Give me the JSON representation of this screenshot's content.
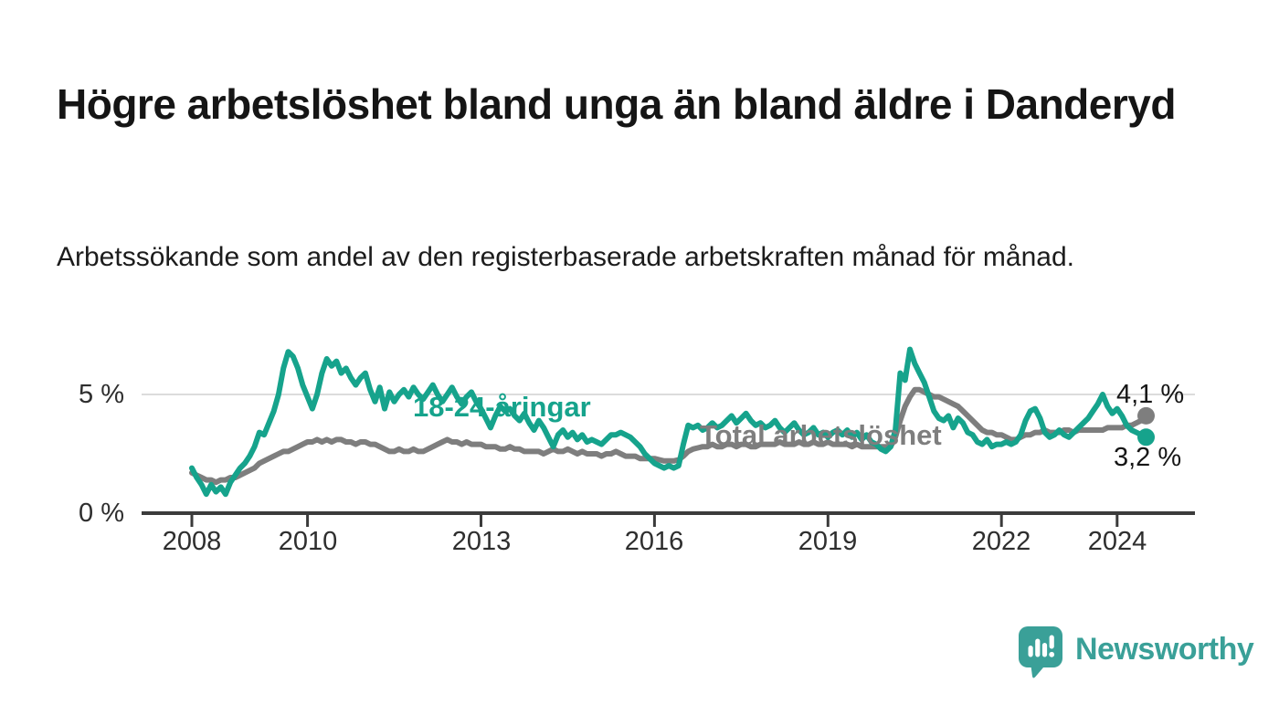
{
  "title": "Högre arbetslöshet bland unga än bland äldre i Danderyd",
  "subtitle": "Arbetssökande som andel av den registerbaserade arbetskraften månad för månad.",
  "axis": {
    "y_labels": [
      "5 %",
      "0 %"
    ],
    "x_labels": [
      "2008",
      "2010",
      "2013",
      "2016",
      "2019",
      "2022",
      "2024"
    ]
  },
  "logo": {
    "text": "Newsworthy",
    "color": "#3aa098",
    "icon": "newsworthy-speech-bubble-bar-chart-icon"
  },
  "chart_data": {
    "type": "line",
    "title": "Högre arbetslöshet bland unga än bland äldre i Danderyd",
    "subtitle": "Arbetssökande som andel av den registerbaserade arbetskraften månad för månad.",
    "unit": "%",
    "frequency": "monthly",
    "x_range": {
      "start": "2008-01",
      "end": "2024-07"
    },
    "x_ticks": [
      {
        "label": "2008",
        "year": 2008
      },
      {
        "label": "2010",
        "year": 2010
      },
      {
        "label": "2013",
        "year": 2013
      },
      {
        "label": "2016",
        "year": 2016
      },
      {
        "label": "2019",
        "year": 2019
      },
      {
        "label": "2022",
        "year": 2022
      },
      {
        "label": "2024",
        "year": 2024
      }
    ],
    "y_axis": {
      "ticks": [
        {
          "label": "0 %",
          "value": 0
        },
        {
          "label": "5 %",
          "value": 5
        }
      ],
      "range": [
        0,
        7.5
      ],
      "gridlines": [
        5
      ]
    },
    "legend_position": "inline-labels",
    "series": [
      {
        "name": "Total arbetslöshet",
        "color": "#7e7e7e",
        "end_label": "4,1 %",
        "last_value": 4.1,
        "values": [
          1.7,
          1.6,
          1.5,
          1.4,
          1.4,
          1.3,
          1.4,
          1.4,
          1.5,
          1.5,
          1.6,
          1.7,
          1.8,
          1.9,
          2.1,
          2.2,
          2.3,
          2.4,
          2.5,
          2.6,
          2.6,
          2.7,
          2.8,
          2.9,
          3.0,
          3.0,
          3.1,
          3.0,
          3.1,
          3.0,
          3.1,
          3.1,
          3.0,
          3.0,
          2.9,
          3.0,
          3.0,
          2.9,
          2.9,
          2.8,
          2.7,
          2.6,
          2.6,
          2.7,
          2.6,
          2.6,
          2.7,
          2.6,
          2.6,
          2.7,
          2.8,
          2.9,
          3.0,
          3.1,
          3.0,
          3.0,
          2.9,
          3.0,
          2.9,
          2.9,
          2.9,
          2.8,
          2.8,
          2.8,
          2.7,
          2.7,
          2.8,
          2.7,
          2.7,
          2.6,
          2.6,
          2.6,
          2.6,
          2.5,
          2.6,
          2.7,
          2.6,
          2.6,
          2.7,
          2.6,
          2.5,
          2.6,
          2.5,
          2.5,
          2.5,
          2.4,
          2.5,
          2.5,
          2.6,
          2.5,
          2.4,
          2.4,
          2.4,
          2.3,
          2.3,
          2.3,
          2.3,
          2.25,
          2.2,
          2.2,
          2.2,
          2.25,
          2.4,
          2.6,
          2.7,
          2.75,
          2.8,
          2.8,
          2.9,
          2.8,
          2.8,
          2.9,
          2.9,
          2.8,
          2.9,
          2.9,
          2.8,
          2.8,
          2.9,
          2.9,
          2.9,
          2.9,
          3.0,
          2.9,
          2.9,
          2.9,
          3.0,
          2.9,
          2.9,
          3.0,
          2.9,
          2.9,
          3.0,
          2.9,
          2.9,
          2.9,
          2.9,
          2.8,
          2.9,
          2.8,
          2.8,
          2.8,
          2.8,
          2.8,
          2.8,
          2.8,
          3.2,
          3.9,
          4.5,
          4.9,
          5.2,
          5.2,
          5.1,
          5.0,
          4.9,
          4.9,
          4.8,
          4.7,
          4.6,
          4.5,
          4.3,
          4.1,
          3.9,
          3.7,
          3.5,
          3.4,
          3.4,
          3.3,
          3.3,
          3.2,
          3.1,
          3.1,
          3.2,
          3.3,
          3.3,
          3.4,
          3.4,
          3.5,
          3.4,
          3.4,
          3.4,
          3.5,
          3.5,
          3.4,
          3.5,
          3.5,
          3.5,
          3.5,
          3.5,
          3.5,
          3.6,
          3.6,
          3.6,
          3.6,
          3.7,
          3.7,
          3.8,
          3.9,
          4.1
        ]
      },
      {
        "name": "18-24-åringar",
        "color": "#16a38c",
        "end_label": "3,2 %",
        "last_value": 3.2,
        "values": [
          1.9,
          1.5,
          1.2,
          0.8,
          1.2,
          0.9,
          1.1,
          0.8,
          1.3,
          1.6,
          1.9,
          2.1,
          2.4,
          2.8,
          3.4,
          3.3,
          3.8,
          4.3,
          5.0,
          6.1,
          6.8,
          6.6,
          6.1,
          5.4,
          4.9,
          4.4,
          5.0,
          5.9,
          6.5,
          6.2,
          6.4,
          5.9,
          6.1,
          5.7,
          5.4,
          5.7,
          5.9,
          5.2,
          4.7,
          5.3,
          4.4,
          5.1,
          4.7,
          5.0,
          5.2,
          4.9,
          5.3,
          5.0,
          4.8,
          5.1,
          5.4,
          5.0,
          4.7,
          5.0,
          5.3,
          4.9,
          4.6,
          4.9,
          5.1,
          4.7,
          4.4,
          4.0,
          3.6,
          4.1,
          4.5,
          4.3,
          4.4,
          4.1,
          3.9,
          4.2,
          3.8,
          3.5,
          3.9,
          3.6,
          3.2,
          2.8,
          3.3,
          3.5,
          3.2,
          3.4,
          3.1,
          3.3,
          3.0,
          3.1,
          3.0,
          2.9,
          3.1,
          3.3,
          3.3,
          3.4,
          3.3,
          3.2,
          3.0,
          2.8,
          2.5,
          2.3,
          2.1,
          2.0,
          1.9,
          2.0,
          1.9,
          2.0,
          2.9,
          3.7,
          3.6,
          3.7,
          3.5,
          3.6,
          3.8,
          3.6,
          3.7,
          3.9,
          4.1,
          3.8,
          4.0,
          4.2,
          3.9,
          3.7,
          3.8,
          3.6,
          3.7,
          3.9,
          3.6,
          3.4,
          3.6,
          3.8,
          3.5,
          3.3,
          3.4,
          3.6,
          3.3,
          3.4,
          3.2,
          3.4,
          3.5,
          3.3,
          3.5,
          3.2,
          3.4,
          3.1,
          3.3,
          3.0,
          2.9,
          2.7,
          2.6,
          2.8,
          3.5,
          5.9,
          5.6,
          6.9,
          6.3,
          5.9,
          5.5,
          4.9,
          4.3,
          4.0,
          3.9,
          4.1,
          3.6,
          4.0,
          3.8,
          3.4,
          3.3,
          3.0,
          2.9,
          3.1,
          2.8,
          2.9,
          2.9,
          3.0,
          2.9,
          3.0,
          3.3,
          3.9,
          4.3,
          4.4,
          4.0,
          3.4,
          3.2,
          3.3,
          3.5,
          3.3,
          3.2,
          3.4,
          3.6,
          3.8,
          4.0,
          4.3,
          4.6,
          5.0,
          4.5,
          4.2,
          4.4,
          4.1,
          3.7,
          3.5,
          3.4,
          3.3,
          3.2
        ]
      }
    ]
  }
}
